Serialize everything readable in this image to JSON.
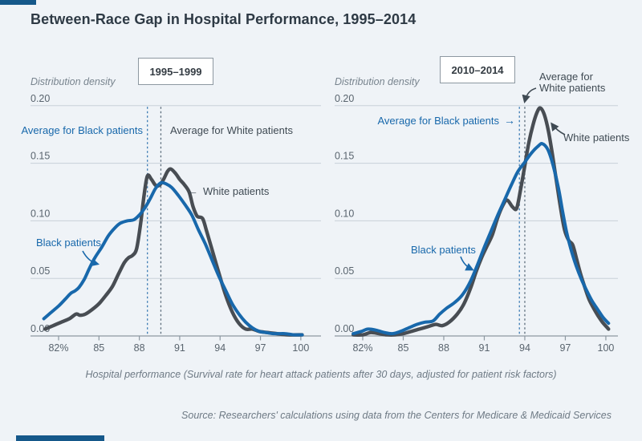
{
  "title": "Between-Race Gap in Hospital Performance, 1995–2014",
  "ylabel": "Distribution density",
  "caption": "Hospital performance (Survival rate for heart attack patients after 30 days, adjusted for patient risk factors)",
  "source": "Source: Researchers' calculations using data from the Centers for Medicare & Medicaid Services",
  "icons": {
    "left_arrow": "←",
    "right_arrow": "→"
  },
  "colors": {
    "accent": "#15588a",
    "black_series": "#1868ab",
    "white_series": "#484d53",
    "avg_black_line": "#3b7ab3",
    "avg_white_line": "#5d6e7d",
    "grid": "#c8d1d9",
    "axis": "#8d98a1"
  },
  "chart_data": [
    {
      "type": "line",
      "title": "1995–1999",
      "xlabel": "Hospital performance (survival rate %)",
      "ylabel": "Distribution density",
      "xlim": [
        80.7,
        100.3
      ],
      "ylim": [
        0,
        0.2
      ],
      "x_tick_labels": [
        "82%",
        "85",
        "88",
        "91",
        "94",
        "97",
        "100"
      ],
      "x_tick_values": [
        82,
        85,
        88,
        91,
        94,
        97,
        100
      ],
      "y_tick_labels": [
        "0.20",
        "0.15",
        "0.10",
        "0.05",
        "0.00"
      ],
      "y_tick_values": [
        0.2,
        0.15,
        0.1,
        0.05,
        0.0
      ],
      "avg_black_x": 88.6,
      "avg_white_x": 89.6,
      "annotations": {
        "avg_black": "Average for Black patients",
        "avg_white": "Average for White patients",
        "white": "White patients",
        "black": "Black patients"
      },
      "series": [
        {
          "name": "White patients",
          "points": [
            [
              81.0,
              0.006
            ],
            [
              81.6,
              0.009
            ],
            [
              82.2,
              0.012
            ],
            [
              82.8,
              0.015
            ],
            [
              83.3,
              0.019
            ],
            [
              83.6,
              0.018
            ],
            [
              84.0,
              0.019
            ],
            [
              84.5,
              0.023
            ],
            [
              85.0,
              0.028
            ],
            [
              85.5,
              0.035
            ],
            [
              86.0,
              0.043
            ],
            [
              86.5,
              0.055
            ],
            [
              86.9,
              0.064
            ],
            [
              87.2,
              0.068
            ],
            [
              87.5,
              0.07
            ],
            [
              87.8,
              0.076
            ],
            [
              88.1,
              0.098
            ],
            [
              88.35,
              0.122
            ],
            [
              88.6,
              0.139
            ],
            [
              88.9,
              0.136
            ],
            [
              89.2,
              0.131
            ],
            [
              89.5,
              0.131
            ],
            [
              89.8,
              0.136
            ],
            [
              90.1,
              0.143
            ],
            [
              90.35,
              0.145
            ],
            [
              90.7,
              0.141
            ],
            [
              91.0,
              0.136
            ],
            [
              91.3,
              0.132
            ],
            [
              91.7,
              0.125
            ],
            [
              92.0,
              0.112
            ],
            [
              92.3,
              0.104
            ],
            [
              92.7,
              0.102
            ],
            [
              93.0,
              0.091
            ],
            [
              93.4,
              0.075
            ],
            [
              93.9,
              0.055
            ],
            [
              94.4,
              0.036
            ],
            [
              94.9,
              0.021
            ],
            [
              95.4,
              0.011
            ],
            [
              95.9,
              0.006
            ],
            [
              96.4,
              0.006
            ],
            [
              96.9,
              0.004
            ],
            [
              97.5,
              0.003
            ],
            [
              98.2,
              0.002
            ],
            [
              99.0,
              0.001
            ],
            [
              100.1,
              0.001
            ]
          ]
        },
        {
          "name": "Black patients",
          "points": [
            [
              80.9,
              0.015
            ],
            [
              81.4,
              0.02
            ],
            [
              82.0,
              0.026
            ],
            [
              82.5,
              0.032
            ],
            [
              82.9,
              0.037
            ],
            [
              83.2,
              0.039
            ],
            [
              83.5,
              0.042
            ],
            [
              83.9,
              0.049
            ],
            [
              84.3,
              0.059
            ],
            [
              84.7,
              0.068
            ],
            [
              85.2,
              0.077
            ],
            [
              85.7,
              0.087
            ],
            [
              86.2,
              0.094
            ],
            [
              86.6,
              0.098
            ],
            [
              87.1,
              0.1
            ],
            [
              87.6,
              0.101
            ],
            [
              88.0,
              0.105
            ],
            [
              88.4,
              0.111
            ],
            [
              88.8,
              0.119
            ],
            [
              89.2,
              0.128
            ],
            [
              89.6,
              0.133
            ],
            [
              90.0,
              0.132
            ],
            [
              90.4,
              0.129
            ],
            [
              90.9,
              0.122
            ],
            [
              91.4,
              0.114
            ],
            [
              91.9,
              0.105
            ],
            [
              92.4,
              0.092
            ],
            [
              92.9,
              0.08
            ],
            [
              93.4,
              0.066
            ],
            [
              93.9,
              0.052
            ],
            [
              94.4,
              0.04
            ],
            [
              94.9,
              0.028
            ],
            [
              95.4,
              0.019
            ],
            [
              95.9,
              0.012
            ],
            [
              96.4,
              0.007
            ],
            [
              96.9,
              0.004
            ],
            [
              97.4,
              0.003
            ],
            [
              98.0,
              0.002
            ],
            [
              98.8,
              0.002
            ],
            [
              99.5,
              0.001
            ],
            [
              100.1,
              0.001
            ]
          ]
        }
      ]
    },
    {
      "type": "line",
      "title": "2010–2014",
      "xlabel": "Hospital performance (survival rate %)",
      "ylabel": "Distribution density",
      "xlim": [
        81.0,
        100.3
      ],
      "ylim": [
        0,
        0.2
      ],
      "x_tick_labels": [
        "82%",
        "85",
        "88",
        "91",
        "94",
        "97",
        "100"
      ],
      "x_tick_values": [
        82,
        85,
        88,
        91,
        94,
        97,
        100
      ],
      "y_tick_labels": [
        "0.20",
        "0.15",
        "0.10",
        "0.05",
        "0.00"
      ],
      "y_tick_values": [
        0.2,
        0.15,
        0.1,
        0.05,
        0.0
      ],
      "avg_black_x": 93.6,
      "avg_white_x": 94.0,
      "annotations": {
        "avg_black": "Average for Black patients",
        "avg_white_line1": "Average for",
        "avg_white_line2": "White patients",
        "white": "White patients",
        "black": "Black patients"
      },
      "series": [
        {
          "name": "White patients",
          "points": [
            [
              81.3,
              0.001
            ],
            [
              82.0,
              0.001
            ],
            [
              82.6,
              0.003
            ],
            [
              83.2,
              0.002
            ],
            [
              83.8,
              0.001
            ],
            [
              84.4,
              0.001
            ],
            [
              85.0,
              0.002
            ],
            [
              85.6,
              0.004
            ],
            [
              86.2,
              0.006
            ],
            [
              86.8,
              0.008
            ],
            [
              87.4,
              0.01
            ],
            [
              87.9,
              0.009
            ],
            [
              88.4,
              0.012
            ],
            [
              89.0,
              0.019
            ],
            [
              89.5,
              0.028
            ],
            [
              90.0,
              0.042
            ],
            [
              90.4,
              0.056
            ],
            [
              90.8,
              0.068
            ],
            [
              91.2,
              0.078
            ],
            [
              91.6,
              0.088
            ],
            [
              92.0,
              0.103
            ],
            [
              92.4,
              0.114
            ],
            [
              92.7,
              0.118
            ],
            [
              93.1,
              0.112
            ],
            [
              93.4,
              0.111
            ],
            [
              93.7,
              0.128
            ],
            [
              94.0,
              0.148
            ],
            [
              94.3,
              0.168
            ],
            [
              94.6,
              0.183
            ],
            [
              94.9,
              0.194
            ],
            [
              95.15,
              0.198
            ],
            [
              95.45,
              0.192
            ],
            [
              95.75,
              0.178
            ],
            [
              96.05,
              0.157
            ],
            [
              96.35,
              0.134
            ],
            [
              96.65,
              0.111
            ],
            [
              96.95,
              0.092
            ],
            [
              97.25,
              0.083
            ],
            [
              97.55,
              0.079
            ],
            [
              97.85,
              0.066
            ],
            [
              98.15,
              0.053
            ],
            [
              98.45,
              0.042
            ],
            [
              98.75,
              0.032
            ],
            [
              99.05,
              0.025
            ],
            [
              99.4,
              0.018
            ],
            [
              99.75,
              0.012
            ],
            [
              100.2,
              0.006
            ]
          ]
        },
        {
          "name": "Black patients",
          "points": [
            [
              81.3,
              0.002
            ],
            [
              81.9,
              0.004
            ],
            [
              82.4,
              0.006
            ],
            [
              83.0,
              0.005
            ],
            [
              83.6,
              0.003
            ],
            [
              84.2,
              0.002
            ],
            [
              84.8,
              0.004
            ],
            [
              85.4,
              0.007
            ],
            [
              86.0,
              0.01
            ],
            [
              86.6,
              0.012
            ],
            [
              87.2,
              0.013
            ],
            [
              87.7,
              0.019
            ],
            [
              88.2,
              0.024
            ],
            [
              88.8,
              0.029
            ],
            [
              89.4,
              0.036
            ],
            [
              90.0,
              0.048
            ],
            [
              90.5,
              0.062
            ],
            [
              91.0,
              0.077
            ],
            [
              91.5,
              0.091
            ],
            [
              92.0,
              0.105
            ],
            [
              92.5,
              0.118
            ],
            [
              93.0,
              0.131
            ],
            [
              93.5,
              0.143
            ],
            [
              94.0,
              0.151
            ],
            [
              94.5,
              0.159
            ],
            [
              95.0,
              0.165
            ],
            [
              95.3,
              0.167
            ],
            [
              95.7,
              0.162
            ],
            [
              96.1,
              0.148
            ],
            [
              96.5,
              0.128
            ],
            [
              96.8,
              0.108
            ],
            [
              97.1,
              0.09
            ],
            [
              97.4,
              0.076
            ],
            [
              97.8,
              0.061
            ],
            [
              98.2,
              0.049
            ],
            [
              98.6,
              0.039
            ],
            [
              99.0,
              0.03
            ],
            [
              99.4,
              0.023
            ],
            [
              99.8,
              0.016
            ],
            [
              100.2,
              0.011
            ]
          ]
        }
      ]
    }
  ]
}
